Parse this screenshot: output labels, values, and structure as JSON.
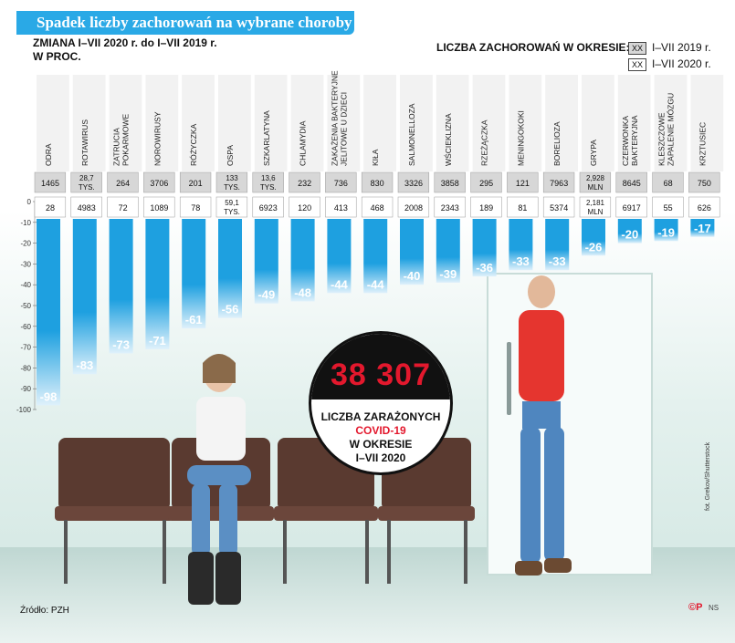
{
  "title": "Spadek liczby zachorowań na wybrane choroby",
  "subtitle_line1": "ZMIANA I–VII 2020 r. do I–VII 2019 r.",
  "subtitle_line2": "W PROC.",
  "legend": {
    "title": "LICZBA ZACHOROWAŃ W OKRESIE:",
    "box_label": "XX",
    "period_2019": "I–VII 2019 r.",
    "period_2020": "I–VII 2020 r."
  },
  "badge": {
    "number": "38 307",
    "line1": "LICZBA ZARAŻONYCH",
    "line2": "COVID-19",
    "line3": "W OKRESIE",
    "line4": "I–VII 2020"
  },
  "source": "Źródło: PZH",
  "photo_credit": "fot. Grekov/Shutterstock",
  "logo": "©P",
  "logo_suffix": "NS",
  "colors": {
    "accent": "#2aa9e6",
    "bar_top": "#1ea0e0",
    "bar_bottom": "#dff1fb",
    "box_2019": "#d7d7d7",
    "red": "#e3182d"
  },
  "chart_data": {
    "type": "bar",
    "ylim": [
      -100,
      0
    ],
    "yticks": [
      "0",
      "-10",
      "-20",
      "-30",
      "-40",
      "-50",
      "-60",
      "-70",
      "-80",
      "-90",
      "-100"
    ],
    "categories": [
      [
        "ODRA"
      ],
      [
        "ROTAWIRUS"
      ],
      [
        "ZATRUCIA",
        "POKARMOWE"
      ],
      [
        "NOROWIRUSY"
      ],
      [
        "RÓŻYCZKA"
      ],
      [
        "OSPA"
      ],
      [
        "SZKARLATYNA"
      ],
      [
        "CHLAMYDIA"
      ],
      [
        "ZAKAŻENIA BAKTERYJNE",
        "JELITOWE U DZIECI"
      ],
      [
        "KIŁA"
      ],
      [
        "SALMONELLOZA"
      ],
      [
        "WŚCIEKLIZNA"
      ],
      [
        "RZEŻĄCZKA"
      ],
      [
        "MENINGOKOKI"
      ],
      [
        "BORELIOZA"
      ],
      [
        "GRYPA"
      ],
      [
        "CZERWONKA",
        "BAKTERYJNA"
      ],
      [
        "KLESZCZOWE",
        "ZAPALENIE MÓZGU"
      ],
      [
        "KRZTUSIEC"
      ]
    ],
    "values": [
      -98,
      -83,
      -73,
      -71,
      -61,
      -56,
      -49,
      -48,
      -44,
      -44,
      -40,
      -39,
      -36,
      -33,
      -33,
      -26,
      -20,
      -19,
      -17
    ],
    "value_labels": [
      "-98",
      "-83",
      "-73",
      "-71",
      "-61",
      "-56",
      "-49",
      "-48",
      "-44",
      "-44",
      "-40",
      "-39",
      "-36",
      "-33",
      "-33",
      "-26",
      "-20",
      "-19",
      "-17"
    ],
    "cases_2019": [
      [
        "1465"
      ],
      [
        "28,7",
        "TYS."
      ],
      [
        "264"
      ],
      [
        "3706"
      ],
      [
        "201"
      ],
      [
        "133",
        "TYS."
      ],
      [
        "13,6",
        "TYS."
      ],
      [
        "232"
      ],
      [
        "736"
      ],
      [
        "830"
      ],
      [
        "3326"
      ],
      [
        "3858"
      ],
      [
        "295"
      ],
      [
        "121"
      ],
      [
        "7963"
      ],
      [
        "2,928",
        "MLN"
      ],
      [
        "8645"
      ],
      [
        "68"
      ],
      [
        "750"
      ]
    ],
    "cases_2020": [
      [
        "28"
      ],
      [
        "4983"
      ],
      [
        "72"
      ],
      [
        "1089"
      ],
      [
        "78"
      ],
      [
        "59,1",
        "TYS."
      ],
      [
        "6923"
      ],
      [
        "120"
      ],
      [
        "413"
      ],
      [
        "468"
      ],
      [
        "2008"
      ],
      [
        "2343"
      ],
      [
        "189"
      ],
      [
        "81"
      ],
      [
        "5374"
      ],
      [
        "2,181",
        "MLN"
      ],
      [
        "6917"
      ],
      [
        "55"
      ],
      [
        "626"
      ]
    ]
  }
}
